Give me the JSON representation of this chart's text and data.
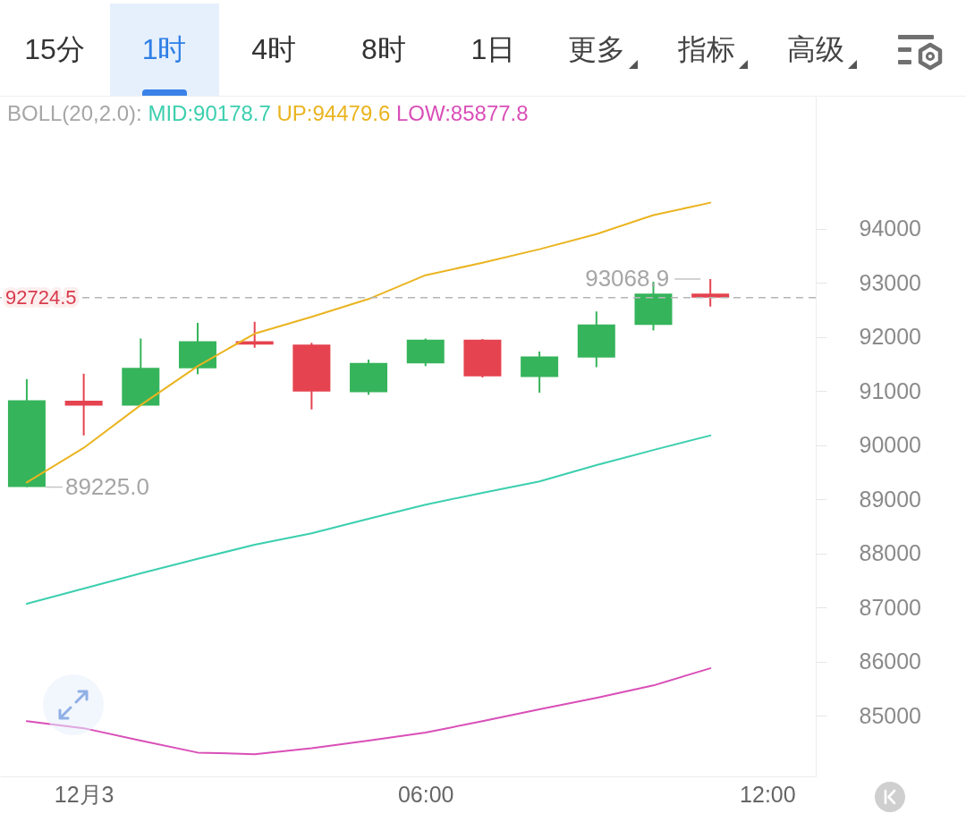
{
  "chart_data": {
    "type": "candlestick",
    "legend": "top left",
    "legend_title": "BOLL(20,2.0):",
    "x": [
      -1,
      0,
      1,
      2,
      3,
      4,
      5,
      6,
      7,
      8,
      9,
      10,
      11
    ],
    "ohlc": [
      [
        89225,
        91220,
        89225,
        90830
      ],
      [
        90820,
        91320,
        90180,
        90730
      ],
      [
        90730,
        91970,
        90720,
        91430
      ],
      [
        91420,
        92260,
        91310,
        91920
      ],
      [
        91920,
        92280,
        91800,
        91860
      ],
      [
        91860,
        91890,
        90660,
        90990
      ],
      [
        90980,
        91580,
        90930,
        91520
      ],
      [
        91510,
        91970,
        91460,
        91950
      ],
      [
        91950,
        91960,
        91250,
        91270
      ],
      [
        91260,
        91730,
        90970,
        91640
      ],
      [
        91620,
        92470,
        91440,
        92230
      ],
      [
        92220,
        93020,
        92120,
        92800
      ],
      [
        92800,
        93068.9,
        92560,
        92724.5
      ]
    ],
    "colors": [
      "#36b45b",
      "#e5434f",
      "#36b45b",
      "#36b45b",
      "#e5434f",
      "#e5434f",
      "#36b45b",
      "#36b45b",
      "#e5434f",
      "#36b45b",
      "#36b45b",
      "#36b45b",
      "#e5434f"
    ],
    "series": [
      {
        "type": "line",
        "name": "MID:90178.7",
        "color": "#3ccfae",
        "x": [
          -1,
          0,
          1,
          2,
          3,
          4,
          5,
          6,
          7,
          8,
          9,
          10,
          11
        ],
        "values": [
          87070,
          87350,
          87630,
          87900,
          88160,
          88370,
          88640,
          88900,
          89120,
          89330,
          89630,
          89910,
          90178.7
        ]
      },
      {
        "type": "line",
        "name": "UP:94479.6",
        "color": "#eab420",
        "x": [
          -1,
          0,
          1,
          2,
          3,
          4,
          5,
          6,
          7,
          8,
          9,
          10,
          11
        ],
        "values": [
          89310,
          89950,
          90740,
          91460,
          92060,
          92370,
          92700,
          93140,
          93370,
          93620,
          93900,
          94250,
          94479.6
        ]
      },
      {
        "type": "line",
        "name": "LOW:85877.8",
        "color": "#d94fb8",
        "x": [
          -1,
          0,
          1,
          2,
          3,
          4,
          5,
          6,
          7,
          8,
          9,
          10,
          11
        ],
        "values": [
          84900,
          84770,
          84540,
          84320,
          84290,
          84400,
          84540,
          84690,
          84900,
          85120,
          85330,
          85560,
          85877.8
        ]
      }
    ],
    "xlim": [
      -1.47,
      12.85
    ],
    "xticks": [
      {
        "value": 0,
        "label": "12月3"
      },
      {
        "value": 6,
        "label": "06:00"
      },
      {
        "value": 12,
        "label": "12:00"
      }
    ],
    "ylim": [
      83880,
      96440
    ],
    "yticks": [
      85000,
      86000,
      87000,
      88000,
      89000,
      90000,
      91000,
      92000,
      93000,
      94000
    ],
    "ref_lines": [
      {
        "axis": "y",
        "value": 92724.5,
        "label": "92724.5",
        "color": "#b5b5b5",
        "line_style": "dashed"
      }
    ],
    "annotations": [
      "15分",
      "1时",
      "4时",
      "8时",
      "1日",
      "更多",
      "指标",
      "高级",
      {
        "text": "89225.0",
        "x": -1,
        "y": 89225
      },
      {
        "text": "93068.9",
        "x": 11,
        "y": 93068.9
      }
    ]
  }
}
